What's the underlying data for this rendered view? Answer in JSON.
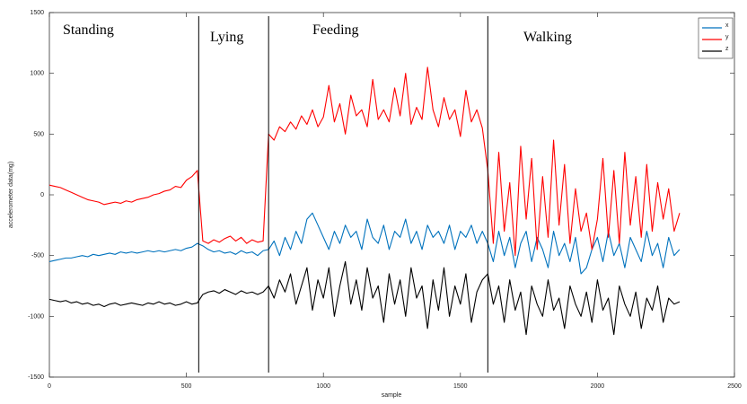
{
  "chart_data": {
    "type": "line",
    "xlabel": "sample",
    "ylabel": "accelerometer data(mg)",
    "annotations": [
      "Standing",
      "Lying",
      "Feeding",
      "Walking"
    ],
    "dividers": [
      545,
      800,
      1600
    ],
    "xlim": [
      0,
      2500
    ],
    "xticks": [
      0,
      500,
      1000,
      1500,
      2000,
      2500
    ],
    "ylim": [
      -1500,
      1500
    ],
    "yticks": [
      -1500,
      -1000,
      -500,
      0,
      500,
      1000,
      1500
    ],
    "grid": false,
    "legend": "upper right",
    "x": [
      0,
      20,
      40,
      60,
      80,
      100,
      120,
      140,
      160,
      180,
      200,
      220,
      240,
      260,
      280,
      300,
      320,
      340,
      360,
      380,
      400,
      420,
      440,
      460,
      480,
      500,
      520,
      540,
      560,
      580,
      600,
      620,
      640,
      660,
      680,
      700,
      720,
      740,
      760,
      780,
      800,
      820,
      840,
      860,
      880,
      900,
      920,
      940,
      960,
      980,
      1000,
      1020,
      1040,
      1060,
      1080,
      1100,
      1120,
      1140,
      1160,
      1180,
      1200,
      1220,
      1240,
      1260,
      1280,
      1300,
      1320,
      1340,
      1360,
      1380,
      1400,
      1420,
      1440,
      1460,
      1480,
      1500,
      1520,
      1540,
      1560,
      1580,
      1600,
      1620,
      1640,
      1660,
      1680,
      1700,
      1720,
      1740,
      1760,
      1780,
      1800,
      1820,
      1840,
      1860,
      1880,
      1900,
      1920,
      1940,
      1960,
      1980,
      2000,
      2020,
      2040,
      2060,
      2080,
      2100,
      2120,
      2140,
      2160,
      2180,
      2200,
      2220,
      2240,
      2260,
      2280,
      2300
    ],
    "series": [
      {
        "name": "x",
        "color": "#0072bd",
        "values": [
          -550,
          -540,
          -530,
          -520,
          -520,
          -510,
          -500,
          -510,
          -490,
          -500,
          -490,
          -480,
          -490,
          -470,
          -480,
          -470,
          -480,
          -470,
          -460,
          -470,
          -460,
          -470,
          -460,
          -450,
          -460,
          -440,
          -430,
          -400,
          -420,
          -450,
          -470,
          -460,
          -480,
          -470,
          -490,
          -460,
          -480,
          -470,
          -500,
          -460,
          -450,
          -380,
          -500,
          -350,
          -450,
          -300,
          -400,
          -200,
          -150,
          -250,
          -350,
          -450,
          -300,
          -400,
          -250,
          -350,
          -300,
          -450,
          -200,
          -350,
          -400,
          -250,
          -450,
          -300,
          -350,
          -200,
          -400,
          -300,
          -450,
          -250,
          -350,
          -300,
          -400,
          -250,
          -450,
          -300,
          -350,
          -250,
          -400,
          -300,
          -400,
          -550,
          -300,
          -500,
          -350,
          -600,
          -400,
          -300,
          -550,
          -350,
          -450,
          -600,
          -300,
          -500,
          -400,
          -550,
          -350,
          -650,
          -600,
          -450,
          -350,
          -550,
          -300,
          -500,
          -400,
          -600,
          -350,
          -450,
          -550,
          -300,
          -500,
          -400,
          -600,
          -350,
          -500,
          -450
        ]
      },
      {
        "name": "y",
        "color": "#ff0000",
        "values": [
          80,
          70,
          60,
          40,
          20,
          0,
          -20,
          -40,
          -50,
          -60,
          -80,
          -70,
          -60,
          -70,
          -50,
          -60,
          -40,
          -30,
          -20,
          0,
          10,
          30,
          40,
          70,
          60,
          120,
          150,
          200,
          -380,
          -400,
          -370,
          -390,
          -360,
          -340,
          -380,
          -350,
          -400,
          -370,
          -390,
          -380,
          500,
          450,
          560,
          520,
          600,
          540,
          650,
          580,
          700,
          560,
          640,
          900,
          600,
          750,
          500,
          820,
          650,
          700,
          560,
          950,
          620,
          700,
          600,
          880,
          650,
          1000,
          580,
          720,
          620,
          1050,
          700,
          560,
          800,
          620,
          700,
          480,
          860,
          600,
          700,
          550,
          200,
          -400,
          350,
          -300,
          100,
          -500,
          400,
          -200,
          300,
          -450,
          150,
          -350,
          450,
          -250,
          250,
          -400,
          50,
          -300,
          -150,
          -450,
          -200,
          300,
          -350,
          200,
          -400,
          350,
          -250,
          150,
          -350,
          250,
          -300,
          100,
          -200,
          50,
          -300,
          -150
        ]
      },
      {
        "name": "z",
        "color": "#000000",
        "values": [
          -860,
          -870,
          -880,
          -870,
          -890,
          -880,
          -900,
          -890,
          -910,
          -900,
          -920,
          -900,
          -890,
          -910,
          -900,
          -890,
          -900,
          -910,
          -890,
          -900,
          -880,
          -900,
          -890,
          -910,
          -900,
          -880,
          -900,
          -890,
          -820,
          -800,
          -790,
          -810,
          -780,
          -800,
          -820,
          -790,
          -810,
          -800,
          -820,
          -800,
          -750,
          -850,
          -700,
          -800,
          -650,
          -900,
          -750,
          -600,
          -950,
          -700,
          -850,
          -600,
          -1000,
          -750,
          -550,
          -900,
          -700,
          -950,
          -600,
          -850,
          -750,
          -1050,
          -650,
          -900,
          -700,
          -1000,
          -600,
          -850,
          -750,
          -1100,
          -700,
          -950,
          -600,
          -1000,
          -750,
          -900,
          -650,
          -1050,
          -800,
          -700,
          -650,
          -900,
          -750,
          -1050,
          -700,
          -950,
          -800,
          -1150,
          -750,
          -900,
          -1000,
          -700,
          -950,
          -850,
          -1100,
          -750,
          -900,
          -1000,
          -800,
          -1050,
          -700,
          -950,
          -850,
          -1150,
          -750,
          -900,
          -1000,
          -800,
          -1100,
          -850,
          -950,
          -750,
          -1050,
          -850,
          -900,
          -880
        ]
      }
    ]
  }
}
